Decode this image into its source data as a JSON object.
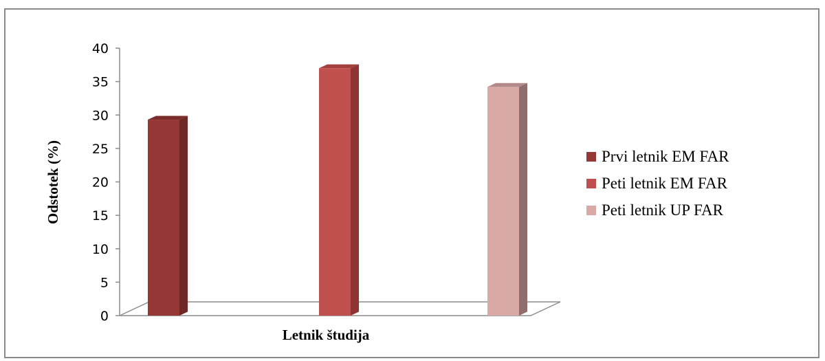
{
  "chart_data": {
    "type": "bar",
    "style": "3d-column",
    "xlabel": "Letnik študija",
    "ylabel": "Odstotek (%)",
    "ylim": [
      0,
      40
    ],
    "yticks": [
      0,
      5,
      10,
      15,
      20,
      25,
      30,
      35,
      40
    ],
    "grid": false,
    "legend_position": "right",
    "series": [
      {
        "name": "Prvi letnik EM FAR",
        "value": 29.3,
        "color": "#953735",
        "side_color": "#6e2826",
        "top_color": "#7a2d2b"
      },
      {
        "name": "Peti letnik EM FAR",
        "value": 37.0,
        "color": "#c0504d",
        "side_color": "#8f3432",
        "top_color": "#a33f3c"
      },
      {
        "name": "Peti letnik UP FAR",
        "value": 34.2,
        "color": "#d9a9a8",
        "side_color": "#8f6e6d",
        "top_color": "#b38a89"
      }
    ]
  }
}
